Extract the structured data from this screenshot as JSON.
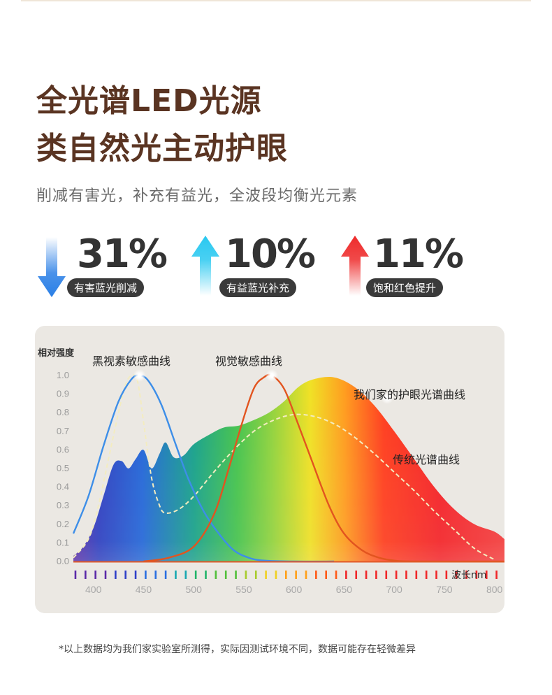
{
  "header": {
    "title_line1": "全光谱LED光源",
    "title_line2": "类自然光主动护眼",
    "subtitle": "削减有害光，补充有益光，全波段均衡光元素"
  },
  "stats": [
    {
      "value": "31%",
      "label": "有害蓝光削减",
      "direction": "down",
      "icon": "arrow-down-icon",
      "color": "#2a7fe6"
    },
    {
      "value": "10%",
      "label": "有益蓝光补充",
      "direction": "up",
      "icon": "arrow-up-icon",
      "color": "#29c8f0"
    },
    {
      "value": "11%",
      "label": "饱和红色提升",
      "direction": "up",
      "icon": "arrow-up-icon",
      "color": "#ee2a2a"
    }
  ],
  "chart_data": {
    "type": "area",
    "ylabel": "相对强度",
    "xlabel": "波长nm",
    "ylim": [
      0,
      1.0
    ],
    "xlim": [
      380,
      810
    ],
    "yticks": [
      "1.0",
      "0.9",
      "0.8",
      "0.7",
      "0.6",
      "0.5",
      "0.4",
      "0.3",
      "0.2",
      "0.1",
      "0.0"
    ],
    "xticks": [
      400,
      450,
      500,
      550,
      600,
      650,
      700,
      750,
      800
    ],
    "series": [
      {
        "name": "我们家的护眼光谱曲线",
        "style": "filled-rainbow",
        "points": [
          [
            380,
            0.03
          ],
          [
            390,
            0.08
          ],
          [
            400,
            0.18
          ],
          [
            410,
            0.35
          ],
          [
            420,
            0.52
          ],
          [
            428,
            0.54
          ],
          [
            435,
            0.5
          ],
          [
            442,
            0.55
          ],
          [
            450,
            0.6
          ],
          [
            458,
            0.5
          ],
          [
            466,
            0.58
          ],
          [
            472,
            0.64
          ],
          [
            480,
            0.56
          ],
          [
            490,
            0.57
          ],
          [
            500,
            0.63
          ],
          [
            515,
            0.68
          ],
          [
            530,
            0.72
          ],
          [
            545,
            0.73
          ],
          [
            560,
            0.76
          ],
          [
            575,
            0.8
          ],
          [
            590,
            0.86
          ],
          [
            605,
            0.94
          ],
          [
            620,
            0.98
          ],
          [
            640,
            0.99
          ],
          [
            660,
            0.94
          ],
          [
            680,
            0.84
          ],
          [
            700,
            0.7
          ],
          [
            720,
            0.55
          ],
          [
            740,
            0.4
          ],
          [
            760,
            0.28
          ],
          [
            780,
            0.2
          ],
          [
            800,
            0.16
          ],
          [
            810,
            0.12
          ]
        ]
      },
      {
        "name": "传统光谱曲线",
        "style": "dashed",
        "points": [
          [
            380,
            0.02
          ],
          [
            395,
            0.12
          ],
          [
            405,
            0.3
          ],
          [
            415,
            0.55
          ],
          [
            425,
            0.8
          ],
          [
            432,
            0.95
          ],
          [
            438,
            1.0
          ],
          [
            444,
            0.97
          ],
          [
            450,
            0.75
          ],
          [
            458,
            0.45
          ],
          [
            466,
            0.3
          ],
          [
            472,
            0.26
          ],
          [
            485,
            0.28
          ],
          [
            500,
            0.35
          ],
          [
            520,
            0.48
          ],
          [
            540,
            0.6
          ],
          [
            560,
            0.7
          ],
          [
            580,
            0.76
          ],
          [
            600,
            0.79
          ],
          [
            620,
            0.78
          ],
          [
            640,
            0.74
          ],
          [
            660,
            0.67
          ],
          [
            680,
            0.58
          ],
          [
            700,
            0.48
          ],
          [
            720,
            0.38
          ],
          [
            740,
            0.27
          ],
          [
            760,
            0.17
          ],
          [
            780,
            0.07
          ],
          [
            800,
            0.01
          ]
        ]
      },
      {
        "name": "黑视素敏感曲线",
        "style": "line",
        "points": [
          [
            380,
            0.15
          ],
          [
            395,
            0.35
          ],
          [
            410,
            0.62
          ],
          [
            425,
            0.86
          ],
          [
            438,
            0.98
          ],
          [
            446,
            1.0
          ],
          [
            455,
            0.97
          ],
          [
            468,
            0.84
          ],
          [
            482,
            0.63
          ],
          [
            495,
            0.44
          ],
          [
            510,
            0.27
          ],
          [
            525,
            0.15
          ],
          [
            540,
            0.06
          ],
          [
            555,
            0.02
          ],
          [
            570,
            0.005
          ],
          [
            600,
            0.0
          ],
          [
            640,
            0.0
          ]
        ]
      },
      {
        "name": "视觉敏感曲线",
        "style": "line",
        "points": [
          [
            450,
            0.0
          ],
          [
            475,
            0.02
          ],
          [
            500,
            0.08
          ],
          [
            520,
            0.25
          ],
          [
            535,
            0.5
          ],
          [
            548,
            0.74
          ],
          [
            560,
            0.93
          ],
          [
            570,
            0.99
          ],
          [
            578,
            1.0
          ],
          [
            590,
            0.93
          ],
          [
            602,
            0.77
          ],
          [
            618,
            0.54
          ],
          [
            635,
            0.3
          ],
          [
            650,
            0.15
          ],
          [
            668,
            0.06
          ],
          [
            685,
            0.02
          ],
          [
            700,
            0.005
          ],
          [
            720,
            0.0
          ],
          [
            810,
            0.0
          ]
        ]
      }
    ],
    "annotations": [
      {
        "text": "黑视素敏感曲线"
      },
      {
        "text": "视觉敏感曲线"
      },
      {
        "text": "我们家的护眼光谱曲线"
      },
      {
        "text": "传统光谱曲线"
      }
    ],
    "colors": {
      "melanopsin": "#3d8ee8",
      "photopic": "#e2541f",
      "traditional": "#f3ecc0",
      "card_bg": "#ebe8e3"
    }
  },
  "footnote": "*以上数据均为我们家实验室所测得，实际因测试环境不同，数据可能存在轻微差异"
}
